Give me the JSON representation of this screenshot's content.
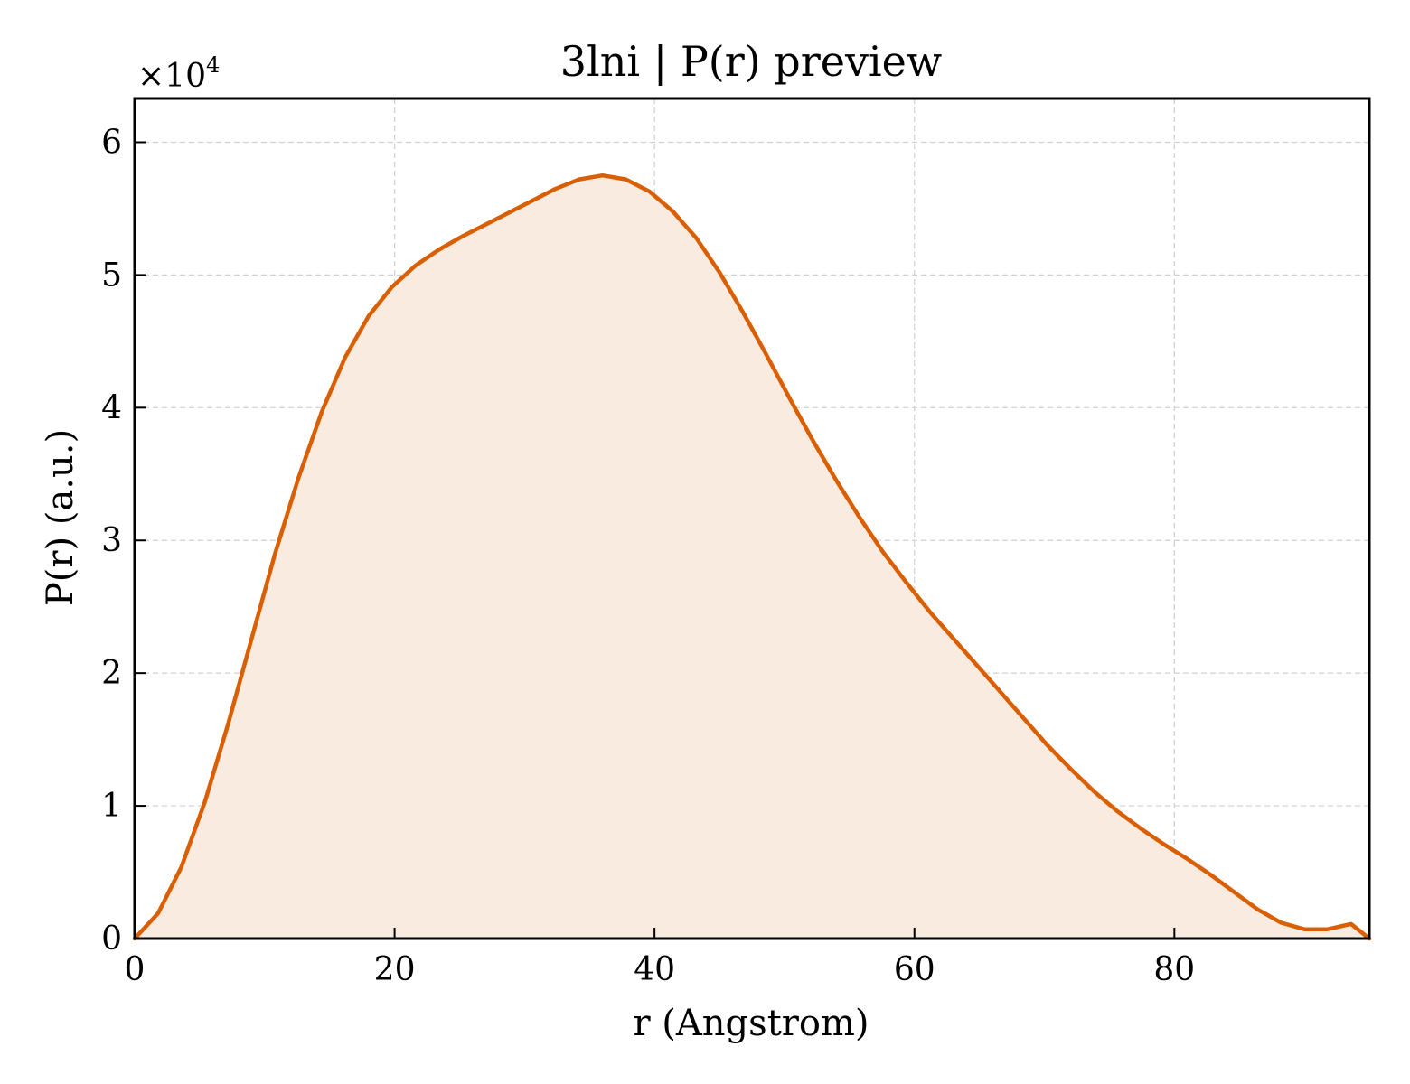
{
  "chart_data": {
    "type": "area",
    "title": "3lni | P(r) preview",
    "xlabel": "r (Angstrom)",
    "ylabel": "P(r) (a.u.)",
    "y_multiplier_base": "×10",
    "y_multiplier_exponent": "4",
    "xlim": [
      0,
      95
    ],
    "ylim": [
      0,
      6.33
    ],
    "xticks": [
      0,
      20,
      40,
      60,
      80
    ],
    "xtick_labels": [
      "0",
      "20",
      "40",
      "60",
      "80"
    ],
    "yticks": [
      0,
      1,
      2,
      3,
      4,
      5,
      6
    ],
    "ytick_labels": [
      "0",
      "1",
      "2",
      "3",
      "4",
      "5",
      "6"
    ],
    "grid": true,
    "line_color": "#d95f02",
    "fill_color": "#f9ebe0",
    "series": [
      {
        "x": [
          0,
          1.8,
          3.6,
          5.4,
          7.2,
          9.0,
          10.8,
          12.6,
          14.4,
          16.2,
          18.0,
          19.8,
          21.6,
          23.4,
          25.2,
          27.0,
          28.8,
          30.6,
          32.4,
          34.2,
          36.0,
          37.8,
          39.6,
          41.4,
          43.2,
          45.0,
          46.8,
          48.6,
          50.4,
          52.2,
          54.0,
          55.8,
          57.6,
          59.4,
          61.2,
          63.0,
          64.8,
          66.6,
          68.4,
          70.2,
          72.0,
          73.8,
          75.6,
          77.4,
          79.2,
          81.0,
          82.8,
          84.6,
          86.4,
          88.2,
          90.0,
          91.8,
          93.6,
          95.0
        ],
        "y": [
          0.0,
          0.19,
          0.54,
          1.03,
          1.62,
          2.26,
          2.9,
          3.47,
          3.97,
          4.38,
          4.69,
          4.91,
          5.07,
          5.19,
          5.29,
          5.38,
          5.47,
          5.56,
          5.65,
          5.72,
          5.75,
          5.72,
          5.63,
          5.48,
          5.28,
          5.02,
          4.72,
          4.4,
          4.07,
          3.75,
          3.45,
          3.17,
          2.91,
          2.68,
          2.46,
          2.26,
          2.06,
          1.86,
          1.66,
          1.46,
          1.28,
          1.11,
          0.96,
          0.83,
          0.71,
          0.6,
          0.48,
          0.35,
          0.22,
          0.12,
          0.07,
          0.07,
          0.11,
          0.0
        ]
      }
    ]
  }
}
